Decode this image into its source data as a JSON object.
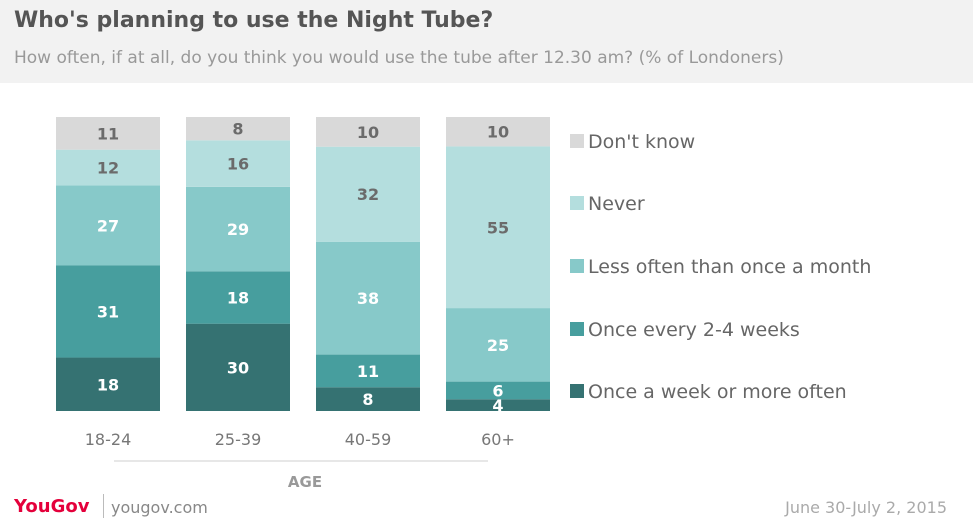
{
  "title": "Who's planning to use the Night Tube?",
  "subtitle": "How often, if at all, do you think you would use the tube after 12.30 am? (% of Londoners)",
  "footer": {
    "brand": "YouGov",
    "site": "yougov.com",
    "date": "June 30-July 2, 2015"
  },
  "chart_data": {
    "type": "bar",
    "stacked": true,
    "xlabel": "AGE",
    "ylabel": "",
    "ylim": [
      0,
      100
    ],
    "grid": false,
    "legend_position": "right",
    "categories": [
      "18-24",
      "25-39",
      "40-59",
      "60+"
    ],
    "series": [
      {
        "name": "Once a week or more often",
        "color": "#357272",
        "values": [
          18,
          30,
          8,
          4
        ]
      },
      {
        "name": "Once every 2-4 weeks",
        "color": "#479e9e",
        "values": [
          31,
          18,
          11,
          6
        ]
      },
      {
        "name": "Less often than once a month",
        "color": "#87c9c9",
        "values": [
          27,
          29,
          38,
          25
        ]
      },
      {
        "name": "Never",
        "color": "#b4dede",
        "values": [
          12,
          16,
          32,
          55
        ]
      },
      {
        "name": "Don't know",
        "color": "#d9d9d9",
        "values": [
          11,
          8,
          10,
          10
        ]
      }
    ]
  }
}
